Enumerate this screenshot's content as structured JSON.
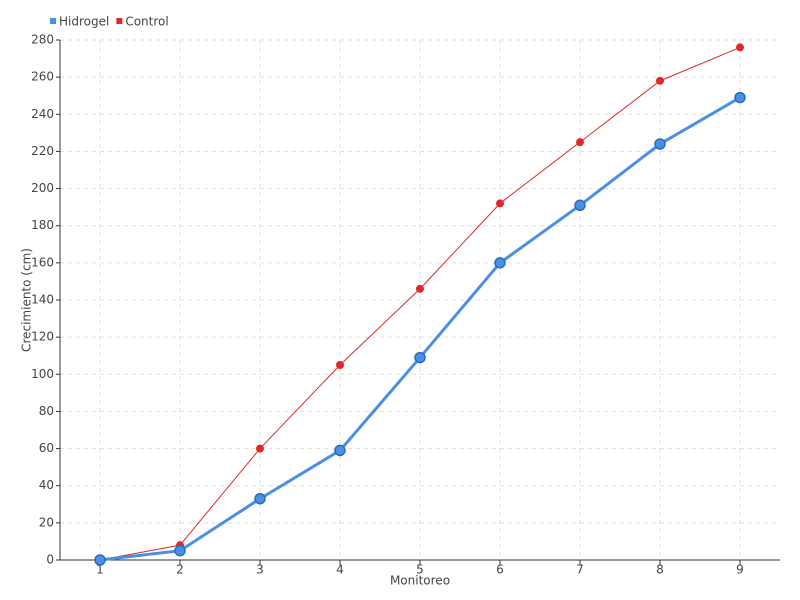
{
  "chart_data": {
    "type": "line",
    "x_label": "Monitoreo",
    "y_label": "Crecimiento (cm)",
    "categories": [
      "1",
      "2",
      "3",
      "4",
      "5",
      "6",
      "7",
      "8",
      "9"
    ],
    "series": [
      {
        "name": "Hidrogel",
        "color": "#4a90e2",
        "values": [
          0,
          5,
          33,
          59,
          109,
          160,
          191,
          224,
          249
        ]
      },
      {
        "name": "Control",
        "color": "#e02828",
        "values": [
          0,
          8,
          60,
          105,
          146,
          192,
          225,
          258,
          276
        ]
      }
    ],
    "ylim": [
      0,
      280
    ],
    "yticks": [
      0,
      20,
      40,
      60,
      80,
      100,
      120,
      140,
      160,
      180,
      200,
      220,
      240,
      260,
      280
    ],
    "grid": true
  }
}
